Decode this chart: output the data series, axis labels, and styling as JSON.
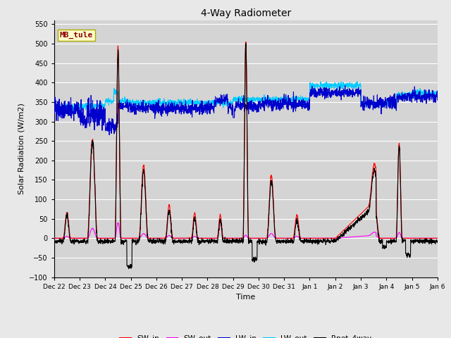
{
  "title": "4-Way Radiometer",
  "xlabel": "Time",
  "ylabel": "Solar Radiation (W/m2)",
  "ylim": [
    -100,
    560
  ],
  "yticks": [
    -100,
    -50,
    0,
    50,
    100,
    150,
    200,
    250,
    300,
    350,
    400,
    450,
    500,
    550
  ],
  "annotation_text": "MB_tule",
  "annotation_color": "#8b0000",
  "annotation_bg": "#ffffcc",
  "annotation_edge": "#aaaa00",
  "fig_bg": "#e8e8e8",
  "plot_bg": "#d4d4d4",
  "grid_color": "#ffffff",
  "colors": {
    "SW_in": "#ff0000",
    "SW_out": "#ff00ff",
    "LW_in": "#0000cc",
    "LW_out": "#00ccff",
    "Rnet_4way": "#000000"
  },
  "x_tick_labels": [
    "Dec 22",
    "Dec 23",
    "Dec 24",
    "Dec 25",
    "Dec 26",
    "Dec 27",
    "Dec 28",
    "Dec 29",
    "Dec 30",
    "Dec 31",
    "Jan 1",
    "Jan 2",
    "Jan 3",
    "Jan 4",
    "Jan 5",
    "Jan 6"
  ],
  "n_days": 15,
  "pts_per_day": 144
}
